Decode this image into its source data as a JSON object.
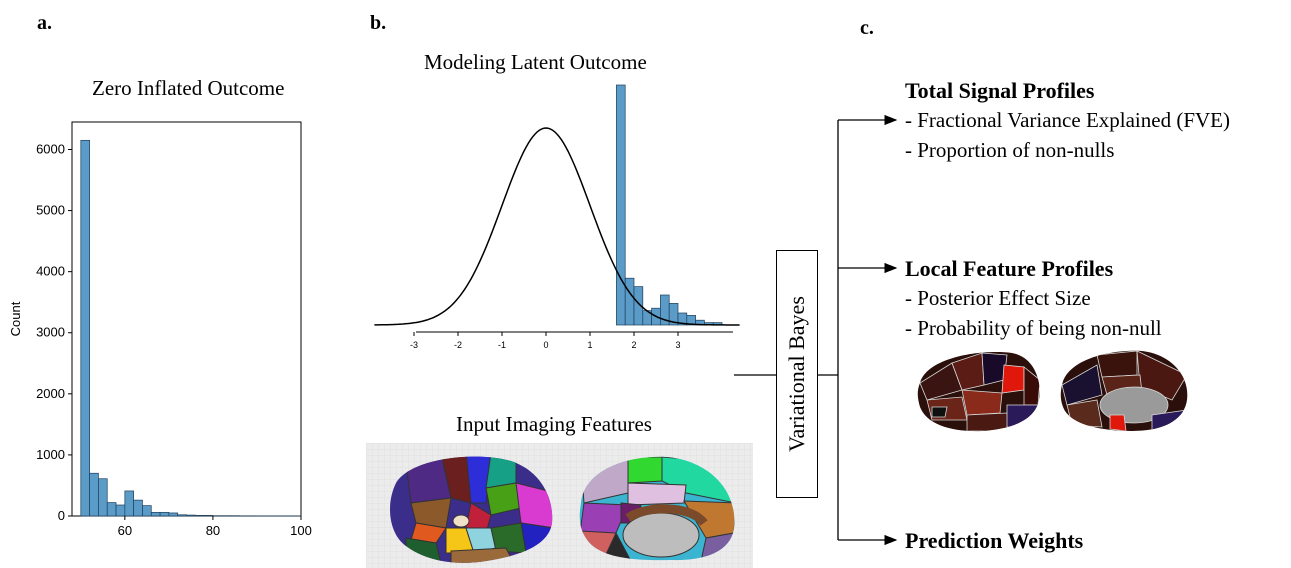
{
  "panels": {
    "a": {
      "label": "a.",
      "title": "Zero Inflated Outcome"
    },
    "b": {
      "label": "b.",
      "title_latent": "Modeling Latent Outcome",
      "title_imaging": "Input Imaging Features"
    },
    "c": {
      "label": "c.",
      "method": "Variational Bayes",
      "outputs": [
        {
          "heading": "Total Signal Profiles",
          "items": [
            "- Fractional Variance Explained (FVE)",
            "- Proportion of non-nulls"
          ]
        },
        {
          "heading": "Local Feature Profiles",
          "items": [
            "- Posterior Effect Size",
            "- Probability of being non-null"
          ]
        },
        {
          "heading": "Prediction Weights",
          "items": []
        }
      ]
    }
  },
  "chart_data": [
    {
      "type": "bar",
      "title": "",
      "xlabel": "",
      "ylabel": "Count",
      "xlim": [
        48,
        100
      ],
      "ylim": [
        0,
        6450
      ],
      "xticks": [
        60,
        80,
        100
      ],
      "yticks": [
        0,
        1000,
        2000,
        3000,
        4000,
        5000,
        6000
      ],
      "bin_width": 2,
      "bin_starts": [
        50,
        52,
        54,
        56,
        58,
        60,
        62,
        64,
        66,
        68,
        70,
        72,
        74,
        76,
        78,
        80,
        82,
        84,
        86,
        88,
        90,
        92,
        94,
        96,
        98
      ],
      "values": [
        6150,
        700,
        610,
        220,
        180,
        410,
        260,
        170,
        60,
        60,
        50,
        20,
        15,
        10,
        10,
        5,
        5,
        5,
        3,
        3,
        2,
        2,
        2,
        2,
        2
      ],
      "bar_color": "#5b9bc8"
    },
    {
      "type": "bar",
      "title": "",
      "xlabel": "",
      "ylabel": "",
      "xlim": [
        -3.9,
        4.4
      ],
      "xticks": [
        -3,
        -2,
        -1,
        0,
        1,
        2,
        3
      ],
      "bin_width": 0.2,
      "bin_starts": [
        1.6,
        1.8,
        2.0,
        2.2,
        2.4,
        2.6,
        2.8,
        3.0,
        3.2,
        3.4,
        3.6,
        3.8
      ],
      "values": [
        1.0,
        0.195,
        0.16,
        0.06,
        0.07,
        0.125,
        0.09,
        0.05,
        0.04,
        0.02,
        0.01,
        0.01
      ],
      "curve": "standard normal density",
      "bar_color": "#5b9bc8"
    }
  ],
  "colors": {
    "bar": "#5b9bc8",
    "bar_edge": "#1f3f5a"
  }
}
